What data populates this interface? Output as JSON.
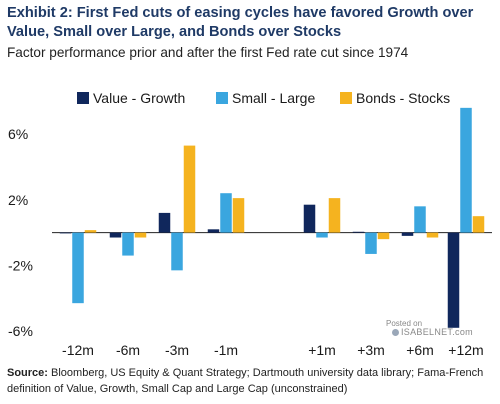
{
  "header": {
    "title": "Exhibit 2: First Fed cuts of easing cycles have favored Growth over Value, Small over Large, and Bonds over Stocks",
    "subtitle": "Factor performance prior and after the first Fed rate cut since 1974"
  },
  "footer": {
    "source_label": "Source:",
    "source_text": "Bloomberg, US Equity & Quant Strategy; Dartmouth university data library; Fama-French definition of Value, Growth, Small Cap and Large Cap (unconstrained)"
  },
  "watermark": {
    "posted_on": "Posted on",
    "site": "ISABELNET.com"
  },
  "chart_data": {
    "type": "bar",
    "categories": [
      "-12m",
      "-6m",
      "-3m",
      "-1m",
      "+1m",
      "+3m",
      "+6m",
      "+12m"
    ],
    "series": [
      {
        "name": "Value - Growth",
        "color": "#10275c",
        "values": [
          0.0,
          -0.3,
          1.2,
          0.2,
          1.7,
          0.05,
          -0.2,
          -5.8
        ]
      },
      {
        "name": "Small - Large",
        "color": "#3aa6df",
        "values": [
          -4.3,
          -1.4,
          -2.3,
          2.4,
          -0.3,
          -1.3,
          1.6,
          7.6
        ]
      },
      {
        "name": "Bonds - Stocks",
        "color": "#f5b31f",
        "values": [
          0.15,
          -0.3,
          5.3,
          2.1,
          2.1,
          -0.4,
          -0.3,
          1.0
        ]
      }
    ],
    "ylim": [
      -6.3,
      8.2
    ],
    "yticks": [
      -6,
      -2,
      2,
      6
    ],
    "ytick_labels": [
      "-6%",
      "-2%",
      "2%",
      "6%"
    ],
    "legend": "top",
    "grid": false
  }
}
